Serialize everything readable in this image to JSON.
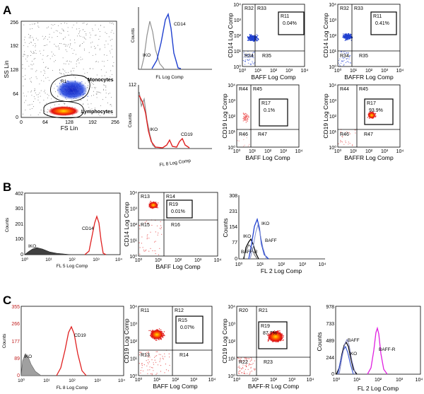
{
  "panel_letters": [
    "A",
    "B",
    "C"
  ],
  "colors": {
    "blue": "#2040d0",
    "red": "#e02020",
    "pink": "#f07070",
    "magenta": "#e020e0",
    "gray": "#909090",
    "dark": "#303030"
  },
  "A": {
    "scatter": {
      "ylabel": "SS Lin",
      "xlabel": "FS Lin",
      "xticks": [
        "0",
        "64",
        "128",
        "192",
        "256"
      ],
      "yticks": [
        "256",
        "192",
        "128",
        "64",
        "0"
      ],
      "gate_top": "Monocytes",
      "gate_bottom": "Lymphocytes",
      "gate_top_tag": "R1"
    },
    "hist_cd14": {
      "ylabel": "Counts",
      "xlabel": "FL Log Comp",
      "iko": "IKO",
      "marker": "CD14",
      "xticks": [
        "10⁰",
        "10¹",
        "10²",
        "10³",
        "10⁴"
      ]
    },
    "hist_cd19": {
      "ylabel": "Counts",
      "xlabel": "FL 8 Log Comp",
      "iko": "IKO",
      "marker": "CD19",
      "ytop": "112",
      "xticks": [
        "10⁰",
        "10¹",
        "10²",
        "10³",
        "10⁴"
      ]
    },
    "quad1": {
      "ylabel": "CD14 Log Comp",
      "xlabel": "BAFF Log Comp",
      "tl": "R32",
      "tr": "R33",
      "bl": "R34",
      "br": "R35",
      "gate": "R11",
      "pct": "0.04%"
    },
    "quad2": {
      "ylabel": "CD14 Log Comp",
      "xlabel": "BAFFR Log Comp",
      "tl": "R32",
      "tr": "R33",
      "bl": "R34",
      "br": "R35",
      "gate": "R11",
      "pct": "0.41%"
    },
    "quad3": {
      "ylabel": "CD19 Log Comp",
      "xlabel": "BAFF Log Comp",
      "tl": "R44",
      "tr": "R45",
      "bl": "R46",
      "br": "R47",
      "gate": "R17",
      "pct": "0.1%"
    },
    "quad4": {
      "ylabel": "CD19 Log Comp",
      "xlabel": "BAFFR Log Comp",
      "tl": "R44",
      "tr": "R45",
      "bl": "R46",
      "br": "R47",
      "gate": "R17",
      "pct": "93.9%"
    },
    "log_ticks": [
      "10⁰",
      "10¹",
      "10²",
      "10³",
      "10⁴"
    ]
  },
  "B": {
    "hist": {
      "ylabel": "Counts",
      "xlabel": "FL 5 Log Comp",
      "iko": "IKO",
      "marker": "CD14",
      "yticks": [
        "402",
        "301",
        "201",
        "100",
        "0"
      ],
      "xticks": [
        "10⁰",
        "10¹",
        "10²",
        "10³",
        "10⁴"
      ]
    },
    "quad": {
      "ylabel": "CD14 Log Comp",
      "xlabel": "BAFF Log Comp",
      "tl": "R13",
      "tr": "R14",
      "bl": "R15",
      "br": "R16",
      "gate": "R19",
      "pct": "0.01%"
    },
    "overlay": {
      "ylabel": "Counts",
      "xlabel": "FL 2 Log Comp",
      "yticks": [
        "308",
        "231",
        "154",
        "77",
        "0"
      ],
      "xticks": [
        "10⁰",
        "10¹",
        "10²",
        "10³",
        "10⁴"
      ],
      "iko1": "IKO",
      "iko2": "IKO",
      "baff": "BAFF",
      "baffr": "BAFF-R"
    }
  },
  "C": {
    "hist": {
      "ylabel": "Counts",
      "xlabel": "FL 8 Log Comp",
      "iko": "IKO",
      "marker": "CD19",
      "yticks": [
        "355",
        "266",
        "177",
        "89",
        "0"
      ],
      "xticks": [
        "10⁰",
        "10¹",
        "10²",
        "10³",
        "10⁴"
      ]
    },
    "quad1": {
      "ylabel": "CD19 Log Comp",
      "xlabel": "BAFF Log Comp",
      "tl": "R11",
      "tr": "R12",
      "bl": "R13",
      "br": "R14",
      "gate": "R15",
      "pct": "0.07%"
    },
    "quad2": {
      "ylabel": "CD19 Log Comp",
      "xlabel": "BAFF-R Log Comp",
      "tl": "R20",
      "tr": "R21",
      "bl": "R22",
      "br": "R23",
      "gate": "R19",
      "pct": "87.7%"
    },
    "overlay": {
      "ylabel": "Counts",
      "xlabel": "FL 2 Log Comp",
      "yticks": [
        "978",
        "733",
        "489",
        "244",
        "0"
      ],
      "xticks": [
        "10⁰",
        "10¹",
        "10²",
        "10³",
        "10⁴"
      ],
      "baff": "BAFF",
      "iko": "IKO",
      "baffr": "BAFF-R"
    }
  }
}
